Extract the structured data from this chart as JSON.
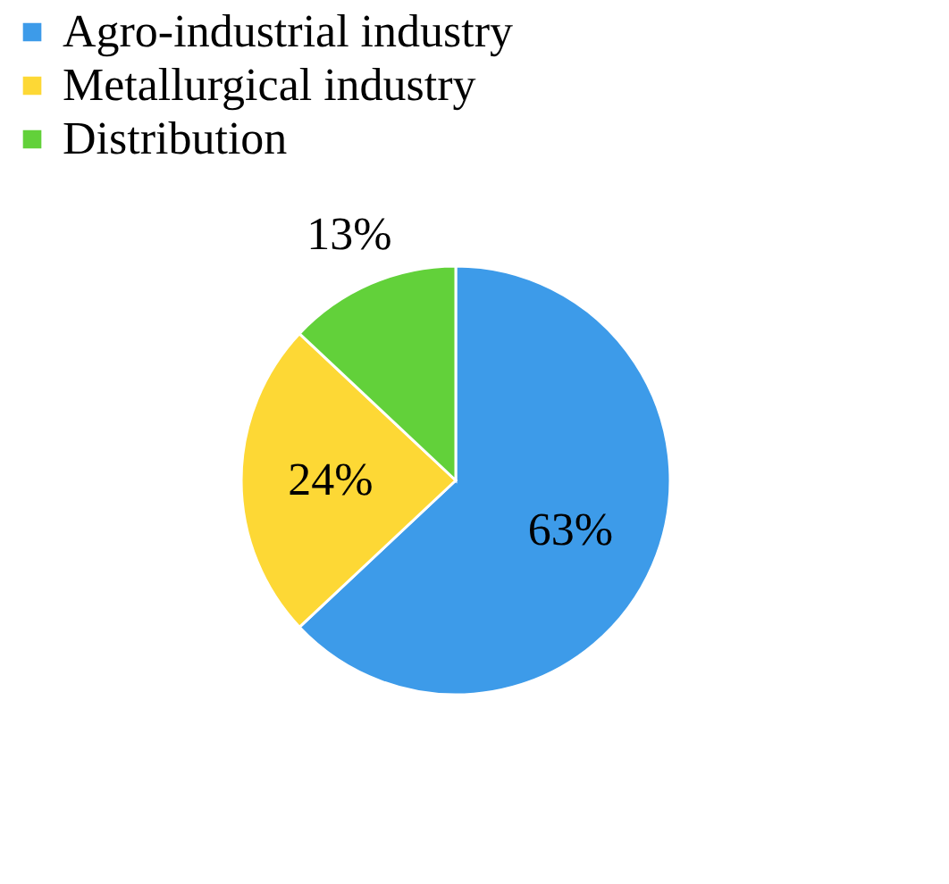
{
  "chart_data": {
    "type": "pie",
    "categories": [
      "Agro-industrial industry",
      "Metallurgical industry",
      "Distribution"
    ],
    "values": [
      63,
      24,
      13
    ],
    "colors": [
      "#3d9be9",
      "#fdd835",
      "#62d13a"
    ],
    "value_labels": [
      "63%",
      "24%",
      "13%"
    ],
    "legend": "top"
  }
}
